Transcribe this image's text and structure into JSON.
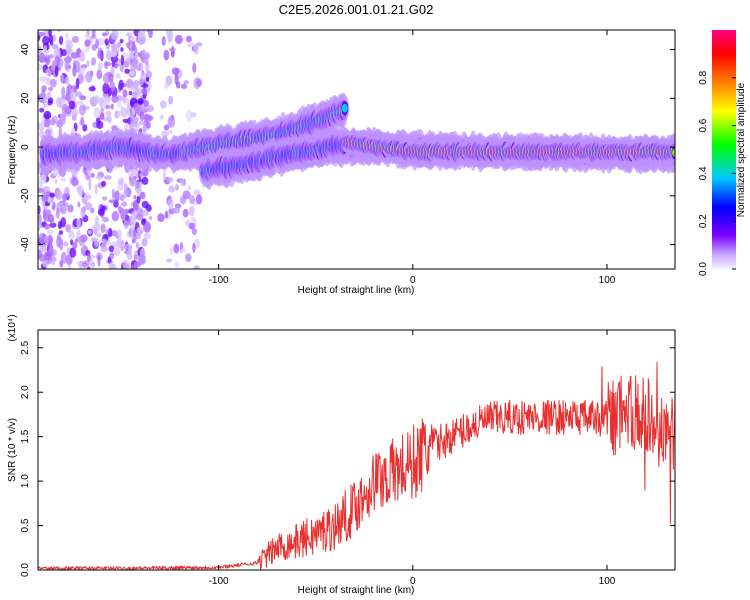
{
  "figure_title": "C2E5.2026.001.01.21.G02",
  "chart_data": [
    {
      "type": "heatmap",
      "title": "C2E5.2026.001.01.21.G02",
      "xlabel": "Height of straight line (km)",
      "ylabel": "Frequency (Hz)",
      "xlim": [
        -193,
        135
      ],
      "ylim": [
        -50,
        48
      ],
      "xticks": [
        -100,
        0,
        100
      ],
      "yticks": [
        -40,
        -20,
        0,
        20,
        40
      ],
      "colorbar": {
        "label": "Normalized spectral amplitude",
        "range": [
          0.0,
          1.0
        ],
        "ticks": [
          0.0,
          0.2,
          0.4,
          0.6,
          0.8
        ],
        "colormap": [
          "#f4f0ff",
          "#7b00ff",
          "#0000ff",
          "#00c8ff",
          "#00ff00",
          "#ffff00",
          "#ff8000",
          "#ff0000",
          "#ff0080"
        ]
      },
      "ridges": [
        {
          "name": "main",
          "points": [
            [
              -190,
              -3
            ],
            [
              -170,
              -2
            ],
            [
              -150,
              0
            ],
            [
              -130,
              -3
            ],
            [
              -110,
              -2
            ],
            [
              -90,
              -1
            ],
            [
              -60,
              0
            ],
            [
              -35,
              0
            ],
            [
              -20,
              0
            ],
            [
              0,
              -1
            ],
            [
              40,
              -2
            ],
            [
              80,
              -2
            ],
            [
              110,
              -3
            ],
            [
              135,
              -3
            ]
          ],
          "amplitude": 0.45
        },
        {
          "name": "upper",
          "points": [
            [
              -118,
              -2
            ],
            [
              -100,
              1
            ],
            [
              -85,
              3
            ],
            [
              -70,
              5
            ],
            [
              -55,
              9
            ],
            [
              -45,
              12
            ],
            [
              -35,
              16
            ]
          ],
          "amplitude": 0.55
        },
        {
          "name": "lower",
          "points": [
            [
              -108,
              -10
            ],
            [
              -95,
              -8
            ],
            [
              -80,
              -6
            ],
            [
              -65,
              -3
            ],
            [
              -50,
              -1
            ],
            [
              -35,
              1
            ]
          ],
          "amplitude": 0.45
        },
        {
          "name": "tail",
          "points": [
            [
              -35,
              2
            ],
            [
              -20,
              0
            ],
            [
              0,
              -2
            ],
            [
              20,
              -2
            ],
            [
              60,
              -2
            ],
            [
              100,
              -2
            ],
            [
              135,
              -2
            ]
          ],
          "amplitude": 0.85
        }
      ]
    },
    {
      "type": "line",
      "xlabel": "Height of straight line (km)",
      "ylabel": "SNR (10 * v/v)",
      "y_multiplier": "(x10⁴)",
      "xlim": [
        -193,
        135
      ],
      "ylim": [
        0,
        2.7
      ],
      "xticks": [
        -100,
        0,
        100
      ],
      "yticks": [
        0.0,
        0.5,
        1.0,
        1.5,
        2.0,
        2.5
      ],
      "color": "#e83030",
      "trend": [
        [
          -193,
          0.02
        ],
        [
          -150,
          0.02
        ],
        [
          -100,
          0.03
        ],
        [
          -80,
          0.08
        ],
        [
          -70,
          0.25
        ],
        [
          -60,
          0.32
        ],
        [
          -50,
          0.4
        ],
        [
          -40,
          0.5
        ],
        [
          -30,
          0.7
        ],
        [
          -20,
          1.0
        ],
        [
          -10,
          1.1
        ],
        [
          0,
          1.2
        ],
        [
          10,
          1.4
        ],
        [
          20,
          1.5
        ],
        [
          30,
          1.62
        ],
        [
          40,
          1.7
        ],
        [
          60,
          1.72
        ],
        [
          80,
          1.72
        ],
        [
          100,
          1.7
        ],
        [
          110,
          1.75
        ],
        [
          120,
          1.75
        ],
        [
          130,
          1.55
        ],
        [
          135,
          1.55
        ]
      ]
    }
  ]
}
